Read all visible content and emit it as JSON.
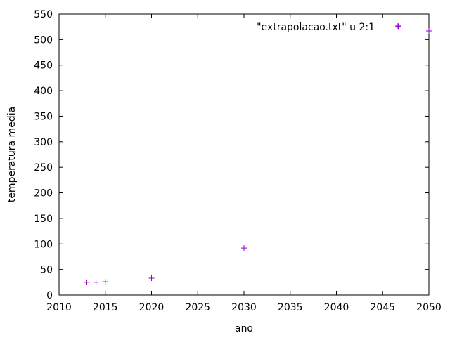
{
  "chart_data": {
    "type": "scatter",
    "title": "",
    "xlabel": "ano",
    "ylabel": "temperatura media",
    "xlim": [
      2010,
      2050
    ],
    "ylim": [
      0,
      550
    ],
    "xticks": [
      2010,
      2015,
      2020,
      2025,
      2030,
      2035,
      2040,
      2045,
      2050
    ],
    "yticks": [
      0,
      50,
      100,
      150,
      200,
      250,
      300,
      350,
      400,
      450,
      500,
      550
    ],
    "grid": false,
    "legend_position": "top-right",
    "series": [
      {
        "name": "\"extrapolacao.txt\" u 2:1",
        "color": "#9400d3",
        "marker": "plus",
        "points": [
          {
            "x": 2013,
            "y": 25
          },
          {
            "x": 2014,
            "y": 25
          },
          {
            "x": 2015,
            "y": 26
          },
          {
            "x": 2020,
            "y": 33
          },
          {
            "x": 2030,
            "y": 92
          },
          {
            "x": 2046.7,
            "y": 526
          },
          {
            "x": 2050,
            "y": 517
          }
        ]
      }
    ]
  }
}
